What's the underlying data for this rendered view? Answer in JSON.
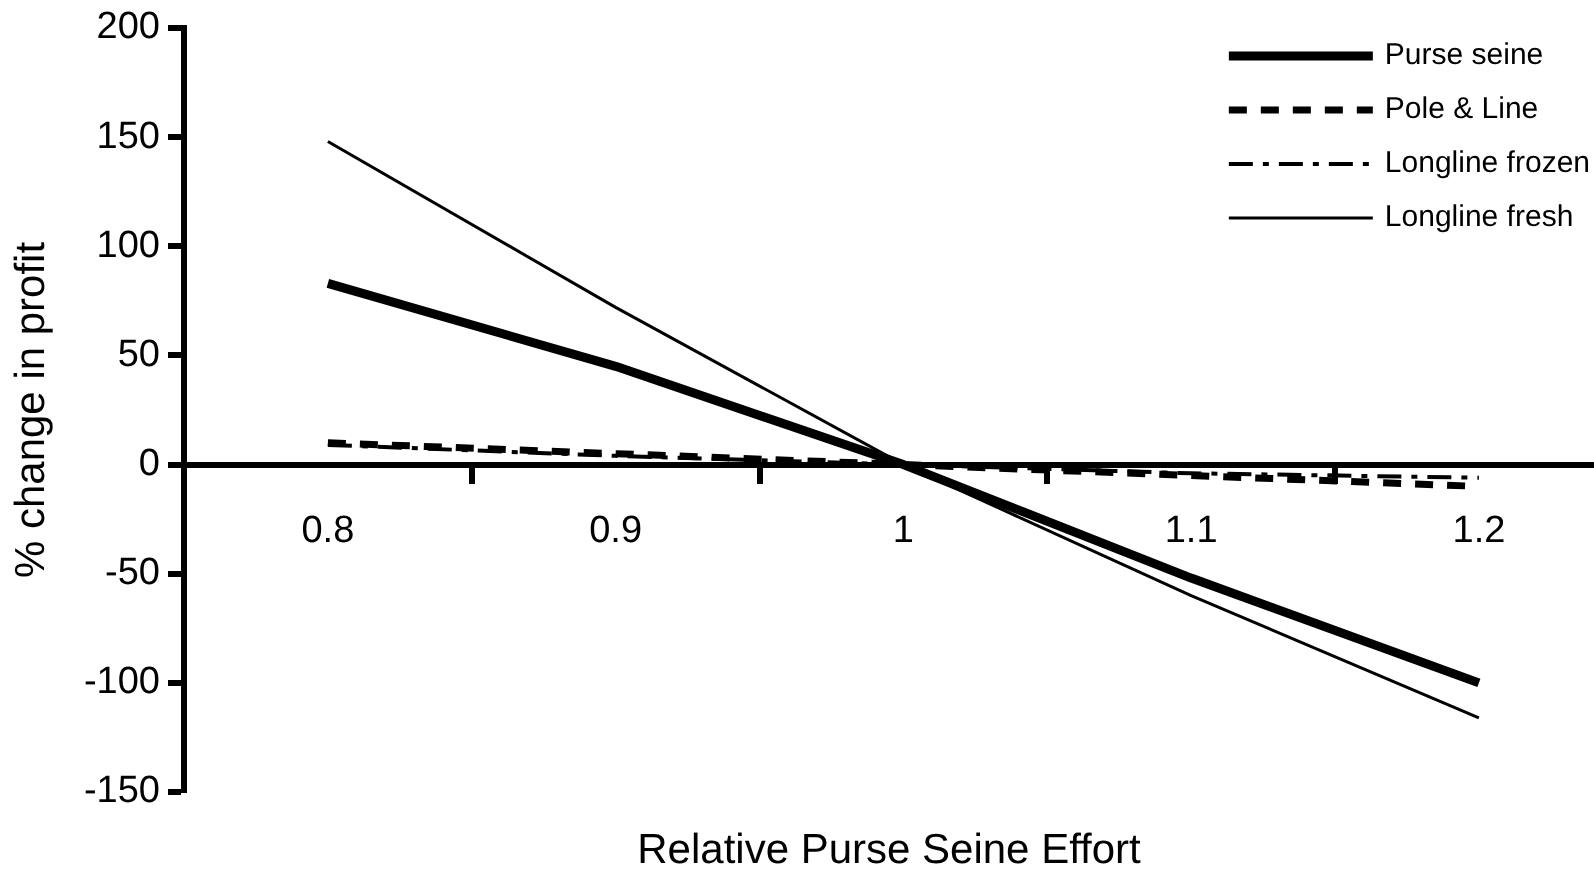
{
  "chart_data": {
    "type": "line",
    "xlabel": "Relative Purse Seine Effort",
    "ylabel": "% change in profit",
    "x": [
      0.8,
      0.9,
      1,
      1.1,
      1.2
    ],
    "xlim": [
      0.75,
      1.24
    ],
    "xticks": [
      0.8,
      {
        "value": 0.85,
        "label": null
      },
      0.9,
      {
        "value": 0.95,
        "label": null
      },
      1,
      {
        "value": 1.05,
        "label": null
      },
      1.1,
      {
        "value": 1.15,
        "label": null
      },
      1.2
    ],
    "ylim": [
      -150,
      200
    ],
    "yticks": [
      -150,
      -100,
      -50,
      0,
      50,
      100,
      150,
      200
    ],
    "grid": false,
    "legend": "top right",
    "marker": "none",
    "series": [
      {
        "name": "Purse seine",
        "color": "#000000",
        "line_style": "solid",
        "values": [
          83,
          45,
          0,
          -52,
          -100
        ]
      },
      {
        "name": "Pole & Line",
        "color": "#000000",
        "line_style": "dashed",
        "values": [
          10,
          5,
          0,
          -5,
          -10
        ]
      },
      {
        "name": "Longline frozen",
        "color": "#000000",
        "line_style": "dashdot",
        "values": [
          9,
          4,
          0,
          -4,
          -6
        ]
      },
      {
        "name": "Longline fresh",
        "color": "#000000",
        "line_style": "solid",
        "values": [
          148,
          72,
          0,
          -60,
          -116
        ]
      }
    ]
  }
}
